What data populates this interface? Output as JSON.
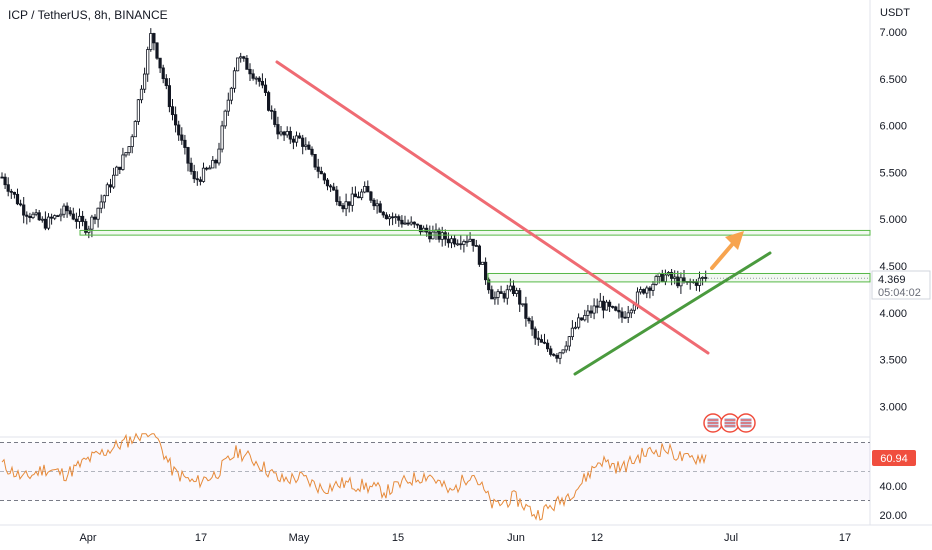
{
  "header": {
    "symbol_title": "ICP / TetherUS, 8h, BINANCE",
    "currency": "USDT"
  },
  "price_axis": {
    "ticks": [
      "7.000",
      "6.500",
      "6.000",
      "5.500",
      "5.000",
      "4.500",
      "4.000",
      "3.500",
      "3.000"
    ],
    "last_price": "4.369",
    "countdown": "05:04:02"
  },
  "rsi": {
    "value_label": "60.94",
    "ticks": [
      "40.00",
      "20.00"
    ]
  },
  "time_axis": {
    "labels": [
      "Apr",
      "17",
      "May",
      "15",
      "Jun",
      "12",
      "Jul",
      "17"
    ]
  },
  "colors": {
    "up": "#26a69a",
    "down_trend": "#ef6b73",
    "up_trend": "#4a9a3e",
    "zone": "#57b847",
    "arrow": "#f7a44f",
    "rsi_line": "#e68a3a",
    "rsi_label_bg": "#f04e3e"
  },
  "icons": [
    "us-flag-event-icon",
    "us-flag-event-icon",
    "us-flag-event-icon"
  ],
  "chart_data": {
    "type": "candlestick",
    "series": [
      {
        "name": "ICP / TetherUS",
        "x": [
          "Mar 25",
          "Mar 27",
          "Apr 1",
          "Apr 5",
          "Apr 10",
          "Apr 14",
          "Apr 16",
          "Apr 17",
          "Apr 19",
          "Apr 22",
          "Apr 25",
          "Apr 28",
          "Apr 29",
          "May 2",
          "May 6",
          "May 10",
          "May 14",
          "May 18",
          "May 22",
          "May 26",
          "May 30",
          "Jun 2",
          "Jun 4",
          "Jun 5",
          "Jun 7",
          "Jun 9",
          "Jun 10",
          "Jun 12",
          "Jun 15",
          "Jun 18",
          "Jun 20",
          "Jun 23",
          "Jun 26",
          "Jun 29"
        ],
        "close": [
          5.45,
          5.1,
          4.95,
          5.1,
          4.9,
          5.35,
          5.8,
          7.0,
          6.1,
          5.4,
          5.6,
          6.75,
          6.5,
          5.9,
          5.85,
          5.45,
          5.15,
          5.3,
          5.05,
          4.95,
          4.85,
          4.78,
          4.8,
          4.15,
          4.25,
          3.7,
          3.55,
          3.9,
          4.1,
          3.95,
          4.25,
          4.4,
          4.3,
          4.37
        ]
      }
    ],
    "zones": [
      {
        "low": 4.83,
        "high": 4.88
      },
      {
        "low": 4.33,
        "high": 4.42
      }
    ],
    "ylim": [
      2.7,
      7.3
    ],
    "rsi_series": [
      55,
      45,
      52,
      48,
      58,
      65,
      72,
      80,
      50,
      42,
      48,
      64,
      56,
      44,
      46,
      38,
      42,
      40,
      36,
      44,
      48,
      35,
      50,
      26,
      32,
      20,
      28,
      40,
      58,
      52,
      62,
      66,
      58,
      61
    ],
    "rsi_ylim": [
      15,
      75
    ]
  }
}
